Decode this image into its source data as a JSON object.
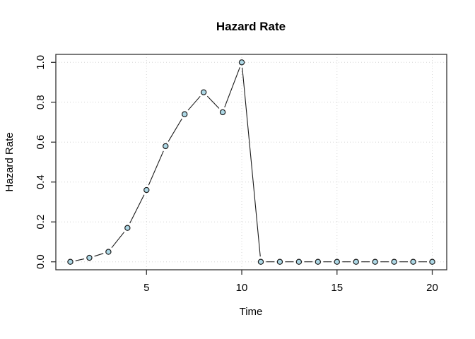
{
  "chart_data": {
    "type": "line",
    "title": "Hazard Rate",
    "xlabel": "Time",
    "ylabel": "Hazard Rate",
    "x": [
      1,
      2,
      3,
      4,
      5,
      6,
      7,
      8,
      9,
      10,
      11,
      12,
      13,
      14,
      15,
      16,
      17,
      18,
      19,
      20
    ],
    "y": [
      0.0,
      0.02,
      0.05,
      0.17,
      0.36,
      0.58,
      0.74,
      0.85,
      0.75,
      1.0,
      0.0,
      0.0,
      0.0,
      0.0,
      0.0,
      0.0,
      0.0,
      0.0,
      0.0,
      0.0
    ],
    "xlim": [
      1,
      20
    ],
    "ylim": [
      0.0,
      1.0
    ],
    "xticks": [
      5,
      10,
      15,
      20
    ],
    "xtick_labels": [
      "5",
      "10",
      "15",
      "20"
    ],
    "yticks": [
      0.0,
      0.2,
      0.4,
      0.6,
      0.8,
      1.0
    ],
    "ytick_labels": [
      "0.0",
      "0.2",
      "0.4",
      "0.6",
      "0.8",
      "1.0"
    ],
    "grid": true,
    "legend": "none",
    "marker": "circle",
    "point_fill": "#ADD8E6",
    "point_stroke": "#1a1a1a",
    "line_color": "#1a1a1a",
    "grid_color": "#d6d6d6",
    "frame_color": "#333333",
    "background": "#ffffff"
  }
}
